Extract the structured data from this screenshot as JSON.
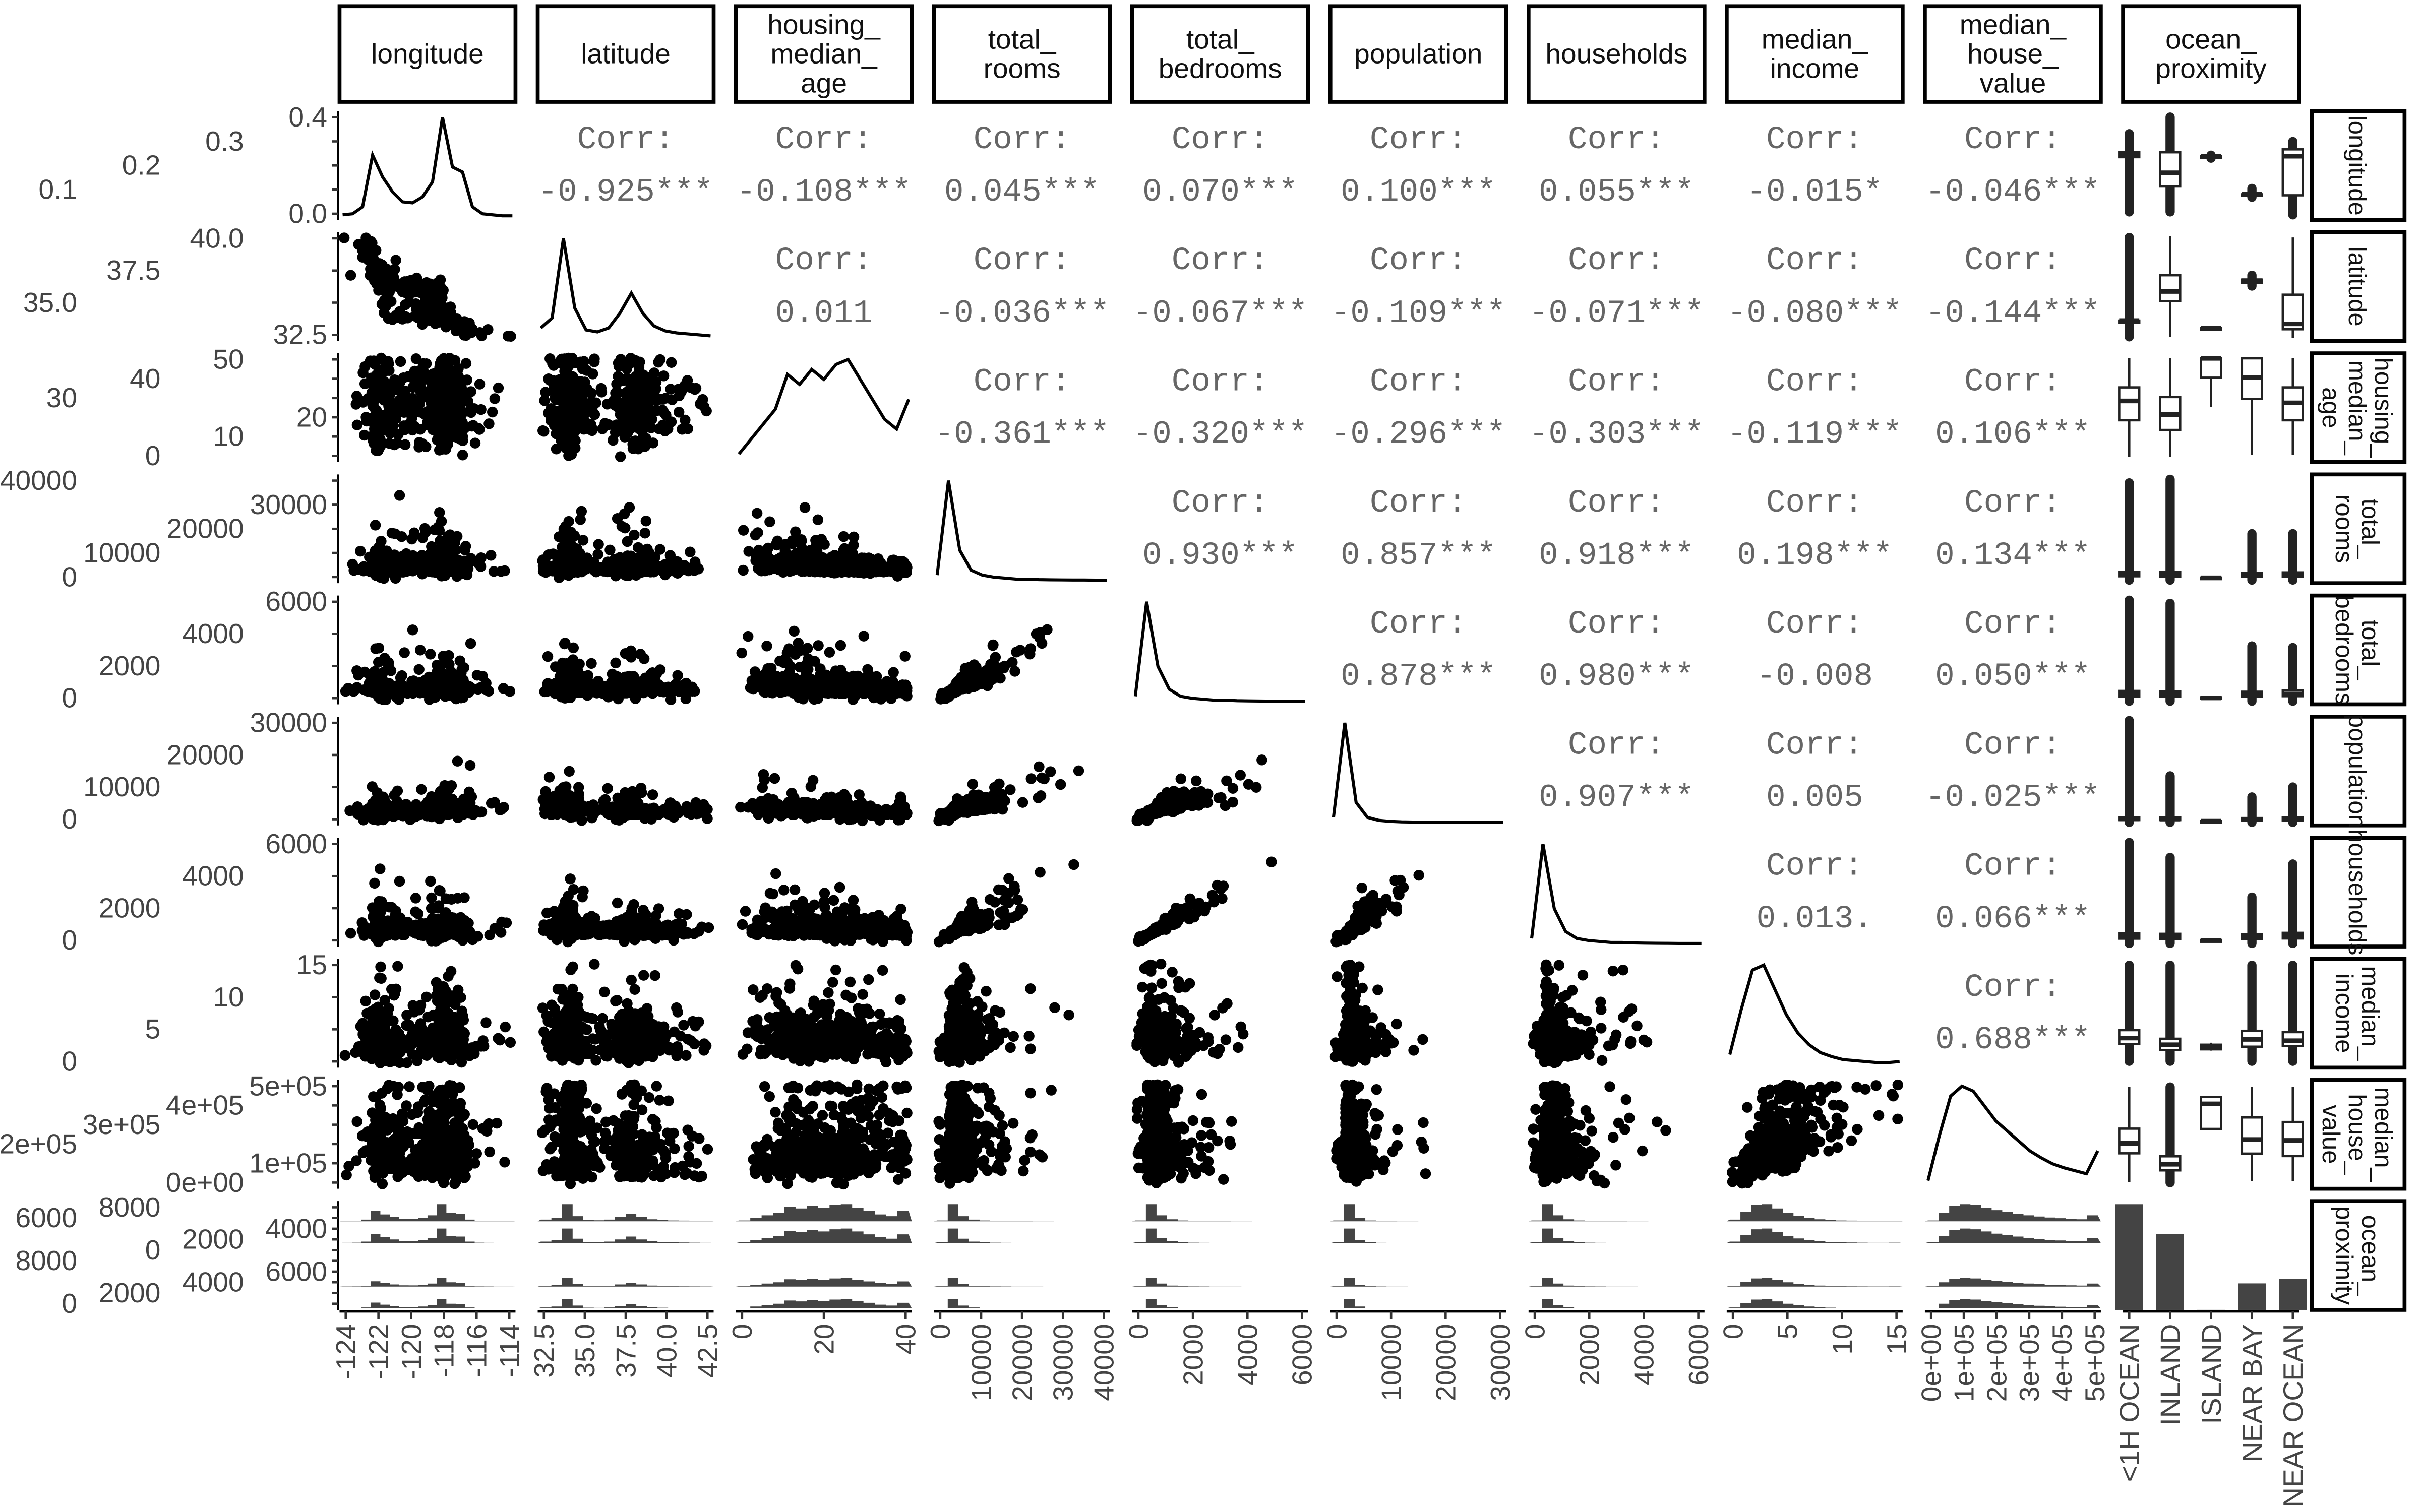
{
  "chart_data": {
    "type": "pairs",
    "title": "",
    "variables": [
      "longitude",
      "latitude",
      "housing_median_age",
      "total_rooms",
      "total_bedrooms",
      "population",
      "households",
      "median_income",
      "median_house_value",
      "ocean_proximity"
    ],
    "ranges": [
      [
        -124.5,
        -114
      ],
      [
        32.5,
        42
      ],
      [
        0,
        53
      ],
      [
        0,
        40000
      ],
      [
        0,
        6500
      ],
      [
        0,
        36000
      ],
      [
        0,
        6200
      ],
      [
        0,
        15.5
      ],
      [
        0,
        520000
      ]
    ],
    "corr_label": "Corr:",
    "correlations": [
      [
        "-0.925***",
        "-0.108***",
        "0.045***",
        "0.070***",
        "0.100***",
        "0.055***",
        "-0.015*",
        "-0.046***"
      ],
      [
        "0.011",
        "-0.036***",
        "-0.067***",
        "-0.109***",
        "-0.071***",
        "-0.080***",
        "-0.144***"
      ],
      [
        "-0.361***",
        "-0.320***",
        "-0.296***",
        "-0.303***",
        "-0.119***",
        "0.106***"
      ],
      [
        "0.930***",
        "0.857***",
        "0.918***",
        "0.198***",
        "0.134***"
      ],
      [
        "0.878***",
        "0.980***",
        "-0.008",
        "0.050***"
      ],
      [
        "0.907***",
        "0.005",
        "-0.025***"
      ],
      [
        "0.013.",
        "0.066***"
      ],
      [
        "0.688***"
      ]
    ],
    "corr_values": [
      [
        -0.925,
        -0.108,
        0.045,
        0.07,
        0.1,
        0.055,
        -0.015,
        -0.046
      ],
      [
        0.011,
        -0.036,
        -0.067,
        -0.109,
        -0.071,
        -0.08,
        -0.144
      ],
      [
        -0.361,
        -0.32,
        -0.296,
        -0.303,
        -0.119,
        0.106
      ],
      [
        0.93,
        0.857,
        0.918,
        0.198,
        0.134
      ],
      [
        0.878,
        0.98,
        -0.008,
        0.05
      ],
      [
        0.907,
        0.005,
        -0.025
      ],
      [
        0.013,
        0.066
      ],
      [
        0.688
      ]
    ],
    "densities": [
      [
        0.02,
        0.03,
        0.1,
        0.62,
        0.4,
        0.25,
        0.15,
        0.14,
        0.2,
        0.35,
        1.0,
        0.5,
        0.45,
        0.1,
        0.03,
        0.02,
        0.01,
        0.01
      ],
      [
        0.1,
        0.2,
        1.0,
        0.3,
        0.08,
        0.06,
        0.1,
        0.25,
        0.45,
        0.25,
        0.12,
        0.07,
        0.05,
        0.04,
        0.03,
        0.02
      ],
      [
        0.05,
        0.2,
        0.35,
        0.5,
        0.85,
        0.75,
        0.9,
        0.8,
        0.95,
        1.0,
        0.8,
        0.6,
        0.4,
        0.3,
        0.6
      ],
      [
        0.05,
        1.0,
        0.3,
        0.1,
        0.05,
        0.03,
        0.02,
        0.01,
        0.01,
        0.005,
        0.003,
        0.002,
        0.001,
        0.001,
        0.0,
        0.0
      ],
      [
        0.05,
        1.0,
        0.35,
        0.12,
        0.05,
        0.03,
        0.02,
        0.01,
        0.01,
        0.005,
        0.003,
        0.002,
        0.001,
        0.0,
        0.0,
        0.0
      ],
      [
        0.05,
        1.0,
        0.2,
        0.05,
        0.02,
        0.01,
        0.005,
        0.003,
        0.002,
        0.001,
        0.0,
        0.0,
        0.0,
        0.0,
        0.0,
        0.0
      ],
      [
        0.05,
        1.0,
        0.35,
        0.12,
        0.05,
        0.03,
        0.02,
        0.01,
        0.01,
        0.005,
        0.003,
        0.002,
        0.001,
        0.0,
        0.0,
        0.0
      ],
      [
        0.1,
        0.55,
        0.95,
        1.0,
        0.75,
        0.5,
        0.32,
        0.2,
        0.12,
        0.08,
        0.05,
        0.04,
        0.03,
        0.02,
        0.02,
        0.03
      ],
      [
        0.05,
        0.5,
        0.9,
        1.0,
        0.95,
        0.8,
        0.65,
        0.55,
        0.45,
        0.35,
        0.28,
        0.22,
        0.18,
        0.15,
        0.12,
        0.35
      ]
    ],
    "categories": [
      "<1H OCEAN",
      "INLAND",
      "ISLAND",
      "NEAR BAY",
      "NEAR OCEAN"
    ],
    "category_counts": [
      9136,
      6551,
      5,
      2290,
      2658
    ],
    "boxplots": [
      [
        [
          -118.4,
          -118.2,
          -117.9,
          -118.9,
          -117.0,
          -124,
          -116
        ],
        [
          -121.4,
          -120,
          -117.9,
          -124,
          -114.3,
          -124,
          -114.3
        ],
        [
          -118.4,
          -118.3,
          -118.3,
          -118.4,
          -118.3,
          -118.5,
          -118.2
        ],
        [
          -122.3,
          -122.2,
          -122.2,
          -122.4,
          -122.1,
          -122.5,
          -121.6
        ],
        [
          -122.3,
          -118.3,
          -117.6,
          -124.3,
          -116.8,
          -124.3,
          -116.8
        ]
      ],
      [
        [
          33.9,
          34.1,
          34.1,
          33.8,
          34.6,
          32.6,
          41.8
        ],
        [
          35.9,
          36.8,
          38.3,
          32.6,
          41.9,
          32.6,
          41.9
        ],
        [
          33.3,
          33.4,
          33.4,
          33.3,
          33.4,
          33.3,
          33.4
        ],
        [
          37.6,
          37.8,
          37.9,
          37.4,
          38.0,
          37.3,
          38.3
        ],
        [
          33.3,
          33.8,
          36.5,
          32.5,
          41.8,
          32.5,
          41.8
        ]
      ],
      [
        [
          20,
          30,
          37,
          1,
          52,
          1,
          52
        ],
        [
          15,
          23,
          32,
          1,
          52,
          1,
          52
        ],
        [
          42,
          52,
          52,
          27,
          52,
          27,
          52
        ],
        [
          31,
          42,
          52,
          2,
          52,
          2,
          52
        ],
        [
          20,
          29,
          37,
          2,
          52,
          2,
          52
        ]
      ],
      [
        [
          1500,
          2100,
          3100,
          2,
          5500,
          2,
          37900
        ],
        [
          1400,
          2100,
          3200,
          2,
          6000,
          2,
          39300
        ],
        [
          700,
          900,
          1000,
          700,
          1000,
          700,
          1000
        ],
        [
          1300,
          2000,
          2800,
          8,
          5000,
          8,
          18100
        ],
        [
          1400,
          2000,
          3000,
          15,
          5400,
          15,
          18100
        ]
      ],
      [
        [
          300,
          440,
          650,
          2,
          1150,
          2,
          6400
        ],
        [
          290,
          420,
          630,
          1,
          1150,
          1,
          6200
        ],
        [
          150,
          210,
          250,
          150,
          250,
          150,
          250
        ],
        [
          290,
          420,
          600,
          1,
          1050,
          1,
          3500
        ],
        [
          320,
          460,
          690,
          3,
          1200,
          3,
          3400
        ]
      ],
      [
        [
          800,
          1200,
          1800,
          3,
          3300,
          3,
          35700
        ],
        [
          800,
          1150,
          1700,
          3,
          3100,
          3,
          16300
        ],
        [
          340,
          400,
          430,
          340,
          430,
          340,
          430
        ],
        [
          700,
          1050,
          1500,
          3,
          2700,
          3,
          8900
        ],
        [
          700,
          1100,
          1700,
          6,
          3100,
          6,
          12400
        ]
      ],
      [
        [
          290,
          420,
          600,
          2,
          1100,
          2,
          6100
        ],
        [
          270,
          390,
          580,
          1,
          1050,
          1,
          5200
        ],
        [
          100,
          190,
          210,
          100,
          210,
          100,
          210
        ],
        [
          280,
          400,
          560,
          1,
          980,
          1,
          2800
        ],
        [
          300,
          440,
          640,
          3,
          1150,
          3,
          4800
        ]
      ],
      [
        [
          3.1,
          4.0,
          5.2,
          0.5,
          8.3,
          0.5,
          15
        ],
        [
          2.2,
          2.99,
          3.9,
          0.5,
          6.4,
          0.5,
          15
        ],
        [
          2.3,
          2.7,
          3.0,
          2.1,
          3.3,
          2.1,
          3.3
        ],
        [
          2.7,
          3.8,
          5.1,
          0.5,
          8.6,
          0.5,
          15
        ],
        [
          2.8,
          3.6,
          4.9,
          0.5,
          8.0,
          0.5,
          15
        ]
      ],
      [
        [
          164000,
          214850,
          289000,
          17500,
          500000,
          17500,
          500001
        ],
        [
          77500,
          108500,
          148900,
          15000,
          255000,
          15000,
          500001
        ],
        [
          287500,
          414700,
          450000,
          287500,
          450000,
          287500,
          450000
        ],
        [
          162500,
          233800,
          345700,
          22500,
          500001,
          22500,
          500001
        ],
        [
          150000,
          229450,
          322750,
          22500,
          500001,
          22500,
          500001
        ]
      ]
    ],
    "y_ticks": [
      [
        "0.0",
        "0.1",
        "0.2",
        "0.3",
        "0.4"
      ],
      [
        "32.5",
        "35.0",
        "37.5",
        "40.0"
      ],
      [
        "0",
        "10",
        "20",
        "30",
        "40",
        "50"
      ],
      [
        "0",
        "10000",
        "20000",
        "30000",
        "40000"
      ],
      [
        "0",
        "2000",
        "4000",
        "6000"
      ],
      [
        "0",
        "10000",
        "20000",
        "30000"
      ],
      [
        "0",
        "2000",
        "4000",
        "6000"
      ],
      [
        "0",
        "5",
        "10",
        "15"
      ],
      [
        "0e+00",
        "1e+05",
        "2e+05",
        "3e+05",
        "4e+05",
        "5e+05"
      ],
      [
        "0",
        "2000",
        "4000",
        "6000",
        "8000",
        "0",
        "2000",
        "4000",
        "6000",
        "8000"
      ]
    ],
    "x_ticks": [
      [
        "-124",
        "-122",
        "-120",
        "-118",
        "-116",
        "-114"
      ],
      [
        "32.5",
        "35.0",
        "37.5",
        "40.0",
        "42.5"
      ],
      [
        "0",
        "20",
        "40"
      ],
      [
        "0",
        "10000",
        "20000",
        "30000",
        "40000"
      ],
      [
        "0",
        "2000",
        "4000",
        "6000"
      ],
      [
        "0",
        "10000",
        "20000",
        "30000"
      ],
      [
        "0",
        "2000",
        "4000",
        "6000"
      ],
      [
        "0",
        "5",
        "10",
        "15"
      ],
      [
        "0e+00",
        "1e+05",
        "2e+05",
        "3e+05",
        "4e+05",
        "5e+05"
      ],
      [
        "<1H OCEAN",
        "INLAND",
        "ISLAND",
        "NEAR BAY",
        "NEAR OCEAN"
      ]
    ],
    "colors": {
      "points": "#000000",
      "corr_text": "#666666",
      "bars": "#444444",
      "strip_border": "#000000"
    }
  }
}
